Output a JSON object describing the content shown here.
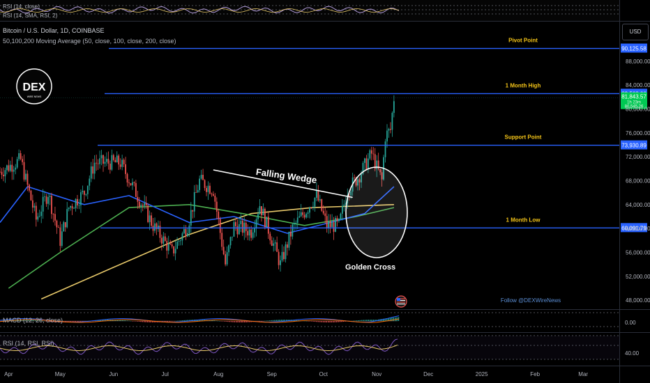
{
  "header": {
    "title": "Bitcoin / U.S. Dollar, 1D, COINBASE",
    "indicator": "50,100,200 Moving Average (50, close, 100, close, 200, close)",
    "top_pane_label_1": "RSI (14, close)",
    "top_pane_label_2": "RSI (14, SMA, RSI, 2)",
    "currency": "USD"
  },
  "logo": {
    "text": "DEX",
    "subtext": "WIRE NEWS"
  },
  "follow_text": "Follow @DEXWireNews",
  "annotations": {
    "falling_wedge": "Falling Wedge",
    "golden_cross": "Golden Cross"
  },
  "levels": [
    {
      "name": "Pivot Point",
      "price": 90125.58,
      "label": "90,125.58"
    },
    {
      "name": "1 Month High",
      "price": 82568.06,
      "label": "82,568.06"
    },
    {
      "name": "Support Point",
      "price": 73930.89,
      "label": "73,930.89"
    },
    {
      "name": "1 Month Low",
      "price": 60091.79,
      "label": "60,091.79"
    }
  ],
  "current_price": {
    "label": "81,843.57",
    "sub1": "1h 23m",
    "sub2": "80,545.26"
  },
  "macd": {
    "label": "MACD (12, 26, close)",
    "axis_label": "0.00"
  },
  "rsi": {
    "label": "RSI (14, RSI, RSI)",
    "axis_label": "40.00"
  },
  "colors": {
    "background": "#000000",
    "level_line": "#2962ff",
    "level_text": "#f5c518",
    "up": "#26a69a",
    "down": "#ef5350",
    "ma50": "#2962ff",
    "ma100": "#4caf50",
    "ma200": "#e8c96a",
    "current_price_bg": "#00c853"
  },
  "chart_data": {
    "type": "candlestick",
    "title": "Bitcoin / U.S. Dollar, 1D, COINBASE",
    "y_ticks": [
      48000,
      52000,
      56000,
      60000,
      64000,
      68000,
      72000,
      76000,
      80000,
      84000,
      88000
    ],
    "y_tick_labels": [
      "48,000.00",
      "52,000.00",
      "56,000.00",
      "60,000.00",
      "64,000.00",
      "68,000.00",
      "72,000.00",
      "76,000.00",
      "80,000.00",
      "84,000.00",
      "88,000.00"
    ],
    "ylim": [
      46500,
      94500
    ],
    "x_ticks": [
      "Apr",
      "May",
      "Jun",
      "Jul",
      "Aug",
      "Sep",
      "Oct",
      "Nov",
      "Dec",
      "2025",
      "Feb",
      "Mar"
    ],
    "x_tick_dates": [
      "2024-04-01",
      "2024-05-01",
      "2024-06-01",
      "2024-07-01",
      "2024-08-01",
      "2024-09-01",
      "2024-10-01",
      "2024-11-01",
      "2024-12-01",
      "2025-01-01",
      "2025-02-01",
      "2025-03-01"
    ],
    "xlim": [
      "2024-03-27",
      "2025-03-22"
    ],
    "close_anchors": [
      {
        "date": "2024-03-27",
        "close": 69500
      },
      {
        "date": "2024-04-08",
        "close": 71500
      },
      {
        "date": "2024-04-17",
        "close": 61500
      },
      {
        "date": "2024-04-24",
        "close": 66000
      },
      {
        "date": "2024-05-01",
        "close": 58000
      },
      {
        "date": "2024-05-06",
        "close": 63500
      },
      {
        "date": "2024-05-15",
        "close": 66000
      },
      {
        "date": "2024-05-21",
        "close": 71000
      },
      {
        "date": "2024-06-05",
        "close": 71000
      },
      {
        "date": "2024-06-14",
        "close": 66000
      },
      {
        "date": "2024-06-24",
        "close": 60500
      },
      {
        "date": "2024-07-05",
        "close": 56000
      },
      {
        "date": "2024-07-14",
        "close": 60500
      },
      {
        "date": "2024-07-21",
        "close": 68000
      },
      {
        "date": "2024-07-29",
        "close": 66500
      },
      {
        "date": "2024-08-05",
        "close": 54000
      },
      {
        "date": "2024-08-10",
        "close": 60500
      },
      {
        "date": "2024-08-20",
        "close": 59500
      },
      {
        "date": "2024-08-25",
        "close": 64000
      },
      {
        "date": "2024-09-06",
        "close": 54000
      },
      {
        "date": "2024-09-13",
        "close": 60000
      },
      {
        "date": "2024-09-27",
        "close": 65500
      },
      {
        "date": "2024-10-03",
        "close": 60500
      },
      {
        "date": "2024-10-10",
        "close": 60500
      },
      {
        "date": "2024-10-15",
        "close": 66500
      },
      {
        "date": "2024-10-21",
        "close": 68500
      },
      {
        "date": "2024-10-29",
        "close": 72500
      },
      {
        "date": "2024-11-04",
        "close": 68000
      },
      {
        "date": "2024-11-06",
        "close": 75500
      },
      {
        "date": "2024-11-09",
        "close": 76500
      },
      {
        "date": "2024-11-11",
        "close": 81843.57
      }
    ],
    "ma50": [
      {
        "date": "2024-03-27",
        "value": 61000
      },
      {
        "date": "2024-04-12",
        "value": 67000
      },
      {
        "date": "2024-05-15",
        "value": 64000
      },
      {
        "date": "2024-06-10",
        "value": 65500
      },
      {
        "date": "2024-07-15",
        "value": 61000
      },
      {
        "date": "2024-08-10",
        "value": 62000
      },
      {
        "date": "2024-09-10",
        "value": 59200
      },
      {
        "date": "2024-10-05",
        "value": 61000
      },
      {
        "date": "2024-10-25",
        "value": 62500
      },
      {
        "date": "2024-11-11",
        "value": 67000
      }
    ],
    "ma100": [
      {
        "date": "2024-04-01",
        "value": 50000
      },
      {
        "date": "2024-05-01",
        "value": 56000
      },
      {
        "date": "2024-06-10",
        "value": 63500
      },
      {
        "date": "2024-07-15",
        "value": 64000
      },
      {
        "date": "2024-08-15",
        "value": 62500
      },
      {
        "date": "2024-09-20",
        "value": 60500
      },
      {
        "date": "2024-10-20",
        "value": 62000
      },
      {
        "date": "2024-11-11",
        "value": 63500
      }
    ],
    "ma200": [
      {
        "date": "2024-04-20",
        "value": 48200
      },
      {
        "date": "2024-06-01",
        "value": 53500
      },
      {
        "date": "2024-07-15",
        "value": 59000
      },
      {
        "date": "2024-08-20",
        "value": 62500
      },
      {
        "date": "2024-09-25",
        "value": 63500
      },
      {
        "date": "2024-11-11",
        "value": 64000
      }
    ],
    "wedge_line": [
      {
        "date": "2024-07-29",
        "value": 69800
      },
      {
        "date": "2024-10-18",
        "value": 65200
      }
    ]
  }
}
